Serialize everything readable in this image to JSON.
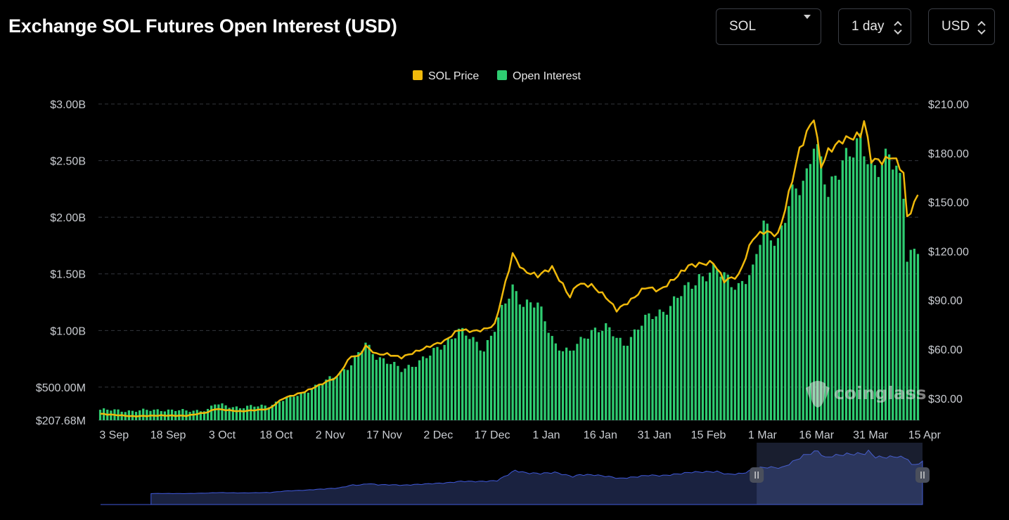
{
  "header": {
    "title": "Exchange SOL Futures Open Interest (USD)",
    "coin_select": "SOL",
    "interval_select": "1 day",
    "unit_select": "USD"
  },
  "watermark": "coinglass",
  "colors": {
    "price_line": "#f0b90b",
    "oi_bars": "#2ecc71",
    "navigator_fill": "#1a2240",
    "navigator_line": "#3f58d9",
    "grid": "#33363d"
  },
  "chart_data": {
    "type": "bar",
    "title": "Exchange SOL Futures Open Interest (USD)",
    "legend": {
      "position": "top-center",
      "items": [
        "SOL Price",
        "Open Interest"
      ]
    },
    "grid": true,
    "x_tick_labels": [
      "3 Sep",
      "18 Sep",
      "3 Oct",
      "18 Oct",
      "2 Nov",
      "17 Nov",
      "2 Dec",
      "17 Dec",
      "1 Jan",
      "16 Jan",
      "31 Jan",
      "15 Feb",
      "1 Mar",
      "16 Mar",
      "31 Mar",
      "15 Apr"
    ],
    "y_left": {
      "tick_labels": [
        "$207.68M",
        "$500.00M",
        "$1.00B",
        "$1.50B",
        "$2.00B",
        "$2.50B",
        "$3.00B"
      ],
      "ticks": [
        207.68,
        500,
        1000,
        1500,
        2000,
        2500,
        3000
      ],
      "range": [
        207.68,
        3000
      ],
      "unit": "USD millions"
    },
    "y_right": {
      "tick_labels": [
        "$30.00",
        "$60.00",
        "$90.00",
        "$120.00",
        "$150.00",
        "$180.00",
        "$210.00"
      ],
      "ticks": [
        30,
        60,
        90,
        120,
        150,
        180,
        210
      ],
      "range": [
        16.6,
        210
      ]
    },
    "date_range": [
      "2023-09-01",
      "2024-04-16"
    ],
    "series": [
      {
        "name": "Open Interest",
        "kind": "bar",
        "axis": "left",
        "points": [
          [
            "2023-09-01",
            300
          ],
          [
            "2023-09-10",
            290
          ],
          [
            "2023-09-18",
            300
          ],
          [
            "2023-09-25",
            290
          ],
          [
            "2023-10-01",
            300
          ],
          [
            "2023-10-03",
            350
          ],
          [
            "2023-10-10",
            320
          ],
          [
            "2023-10-18",
            340
          ],
          [
            "2023-10-25",
            420
          ],
          [
            "2023-11-02",
            530
          ],
          [
            "2023-11-10",
            700
          ],
          [
            "2023-11-14",
            880
          ],
          [
            "2023-11-17",
            780
          ],
          [
            "2023-11-24",
            650
          ],
          [
            "2023-12-02",
            780
          ],
          [
            "2023-12-10",
            1000
          ],
          [
            "2023-12-14",
            910
          ],
          [
            "2023-12-17",
            840
          ],
          [
            "2023-12-20",
            1020
          ],
          [
            "2023-12-25",
            1380
          ],
          [
            "2023-12-28",
            1250
          ],
          [
            "2024-01-01",
            1220
          ],
          [
            "2024-01-06",
            880
          ],
          [
            "2024-01-10",
            800
          ],
          [
            "2024-01-16",
            1010
          ],
          [
            "2024-01-20",
            1020
          ],
          [
            "2024-01-25",
            880
          ],
          [
            "2024-01-31",
            1090
          ],
          [
            "2024-02-07",
            1220
          ],
          [
            "2024-02-15",
            1480
          ],
          [
            "2024-02-20",
            1520
          ],
          [
            "2024-02-26",
            1400
          ],
          [
            "2024-03-01",
            1500
          ],
          [
            "2024-03-04",
            1960
          ],
          [
            "2024-03-08",
            1780
          ],
          [
            "2024-03-12",
            2180
          ],
          [
            "2024-03-16",
            2400
          ],
          [
            "2024-03-18",
            2700
          ],
          [
            "2024-03-22",
            2180
          ],
          [
            "2024-03-26",
            2550
          ],
          [
            "2024-03-31",
            2620
          ],
          [
            "2024-04-03",
            2450
          ],
          [
            "2024-04-08",
            2550
          ],
          [
            "2024-04-12",
            2200
          ],
          [
            "2024-04-13",
            1660
          ],
          [
            "2024-04-16",
            1760
          ]
        ]
      },
      {
        "name": "SOL Price",
        "kind": "line",
        "axis": "right",
        "points": [
          [
            "2023-09-01",
            20.5
          ],
          [
            "2023-09-10",
            19
          ],
          [
            "2023-09-18",
            19.5
          ],
          [
            "2023-09-25",
            19.3
          ],
          [
            "2023-10-01",
            21.5
          ],
          [
            "2023-10-03",
            23.5
          ],
          [
            "2023-10-10",
            22
          ],
          [
            "2023-10-18",
            23.5
          ],
          [
            "2023-10-22",
            30
          ],
          [
            "2023-10-28",
            34
          ],
          [
            "2023-11-02",
            39
          ],
          [
            "2023-11-06",
            43
          ],
          [
            "2023-11-10",
            56
          ],
          [
            "2023-11-12",
            55.5
          ],
          [
            "2023-11-14",
            62
          ],
          [
            "2023-11-17",
            57
          ],
          [
            "2023-11-20",
            57
          ],
          [
            "2023-11-24",
            55
          ],
          [
            "2023-12-02",
            62
          ],
          [
            "2023-12-06",
            65
          ],
          [
            "2023-12-10",
            72
          ],
          [
            "2023-12-14",
            71
          ],
          [
            "2023-12-17",
            72
          ],
          [
            "2023-12-20",
            75
          ],
          [
            "2023-12-25",
            118
          ],
          [
            "2023-12-28",
            108
          ],
          [
            "2024-01-01",
            105
          ],
          [
            "2024-01-05",
            110
          ],
          [
            "2024-01-10",
            92
          ],
          [
            "2024-01-12",
            100
          ],
          [
            "2024-01-16",
            99
          ],
          [
            "2024-01-20",
            92
          ],
          [
            "2024-01-23",
            84
          ],
          [
            "2024-01-27",
            90
          ],
          [
            "2024-01-31",
            98
          ],
          [
            "2024-02-04",
            96
          ],
          [
            "2024-02-08",
            103
          ],
          [
            "2024-02-12",
            111
          ],
          [
            "2024-02-15",
            112
          ],
          [
            "2024-02-19",
            113
          ],
          [
            "2024-02-22",
            102
          ],
          [
            "2024-02-26",
            105
          ],
          [
            "2024-03-01",
            128
          ],
          [
            "2024-03-04",
            132
          ],
          [
            "2024-03-08",
            130
          ],
          [
            "2024-03-10",
            146
          ],
          [
            "2024-03-14",
            182
          ],
          [
            "2024-03-18",
            202
          ],
          [
            "2024-03-20",
            172
          ],
          [
            "2024-03-22",
            181
          ],
          [
            "2024-03-26",
            188
          ],
          [
            "2024-03-31",
            191
          ],
          [
            "2024-04-01",
            200
          ],
          [
            "2024-04-03",
            176
          ],
          [
            "2024-04-06",
            175
          ],
          [
            "2024-04-09",
            178
          ],
          [
            "2024-04-12",
            168
          ],
          [
            "2024-04-13",
            140
          ],
          [
            "2024-04-16",
            154
          ]
        ]
      }
    ],
    "navigator": {
      "window_start": "2024-03-01",
      "window_end": "2024-04-16"
    }
  }
}
